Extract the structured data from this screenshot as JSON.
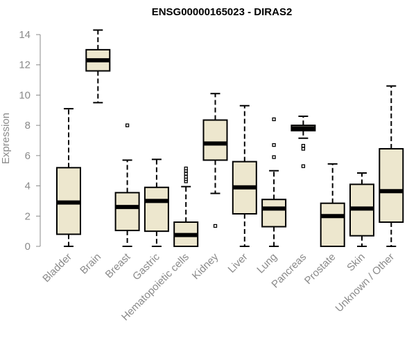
{
  "chart_data": {
    "type": "boxplot",
    "title": "ENSG00000165023 - DIRAS2",
    "xlabel": "",
    "ylabel": "Expression",
    "ylim": [
      0,
      14
    ],
    "yticks": [
      0,
      2,
      4,
      6,
      8,
      10,
      12,
      14
    ],
    "box_fill": "#ede7ce",
    "box_stroke": "#000000",
    "median_color": "#000000",
    "axis_color": "#8a8a8a",
    "categories": [
      "Bladder",
      "Brain",
      "Breast",
      "Gastric",
      "Hematopoietic cells",
      "Kidney",
      "Liver",
      "Lung",
      "Pancreas",
      "Prostate",
      "Skin",
      "Unknown / Other"
    ],
    "series": [
      {
        "name": "Bladder",
        "min": 0,
        "q1": 0.8,
        "median": 2.9,
        "q3": 5.2,
        "max": 9.1,
        "outliers": []
      },
      {
        "name": "Brain",
        "min": 9.5,
        "q1": 11.6,
        "median": 12.3,
        "q3": 13.0,
        "max": 14.3,
        "outliers": []
      },
      {
        "name": "Breast",
        "min": 0,
        "q1": 1.05,
        "median": 2.6,
        "q3": 3.55,
        "max": 5.7,
        "outliers": [
          8.0
        ]
      },
      {
        "name": "Gastric",
        "min": 0,
        "q1": 1.0,
        "median": 3.0,
        "q3": 3.9,
        "max": 5.75,
        "outliers": []
      },
      {
        "name": "Hematopoietic cells",
        "min": 0,
        "q1": 0,
        "median": 0.75,
        "q3": 1.6,
        "max": 3.95,
        "outliers": [
          4.3,
          4.45,
          4.6,
          4.8,
          5.0,
          5.15
        ]
      },
      {
        "name": "Kidney",
        "min": 3.5,
        "q1": 5.7,
        "median": 6.8,
        "q3": 8.35,
        "max": 10.1,
        "outliers": [
          1.35
        ]
      },
      {
        "name": "Liver",
        "min": 0,
        "q1": 2.15,
        "median": 3.9,
        "q3": 5.6,
        "max": 9.3,
        "outliers": []
      },
      {
        "name": "Lung",
        "min": 0,
        "q1": 1.3,
        "median": 2.5,
        "q3": 3.1,
        "max": 5.0,
        "outliers": [
          5.9,
          6.7,
          8.4
        ]
      },
      {
        "name": "Pancreas",
        "min": 7.15,
        "q1": 7.65,
        "median": 7.8,
        "q3": 8.0,
        "max": 8.6,
        "outliers": [
          5.3,
          6.45,
          6.65
        ]
      },
      {
        "name": "Prostate",
        "min": 0,
        "q1": 0,
        "median": 2.0,
        "q3": 2.85,
        "max": 5.45,
        "outliers": []
      },
      {
        "name": "Skin",
        "min": 0,
        "q1": 0.7,
        "median": 2.5,
        "q3": 4.1,
        "max": 4.85,
        "outliers": []
      },
      {
        "name": "Unknown / Other",
        "min": 0,
        "q1": 1.6,
        "median": 3.65,
        "q3": 6.45,
        "max": 10.6,
        "outliers": []
      }
    ]
  }
}
